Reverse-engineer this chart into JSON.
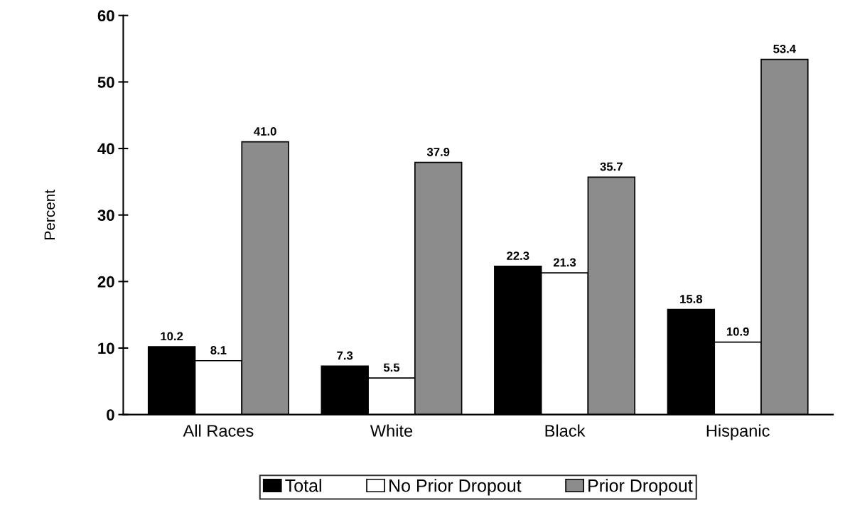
{
  "chart_data": {
    "type": "bar",
    "ylabel": "Percent",
    "categories": [
      "All Races",
      "White",
      "Black",
      "Hispanic"
    ],
    "series": [
      {
        "name": "Total",
        "color": "#000000",
        "values": [
          10.2,
          7.3,
          22.3,
          15.8
        ],
        "value_labels": [
          "10.2",
          "7.3",
          "22.3",
          "15.8"
        ]
      },
      {
        "name": "No Prior Dropout",
        "color": "#ffffff",
        "values": [
          8.1,
          5.5,
          21.3,
          10.9
        ],
        "value_labels": [
          "8.1",
          "5.5",
          "21.3",
          "10.9"
        ]
      },
      {
        "name": "Prior Dropout",
        "color": "#8c8c8c",
        "values": [
          41.0,
          37.9,
          35.7,
          53.4
        ],
        "value_labels": [
          "41.0",
          "37.9",
          "35.7",
          "53.4"
        ]
      }
    ],
    "ylim": [
      0,
      60
    ],
    "yticks": [
      0,
      10,
      20,
      30,
      40,
      50,
      60
    ],
    "grid": false,
    "legend": "bottom"
  }
}
